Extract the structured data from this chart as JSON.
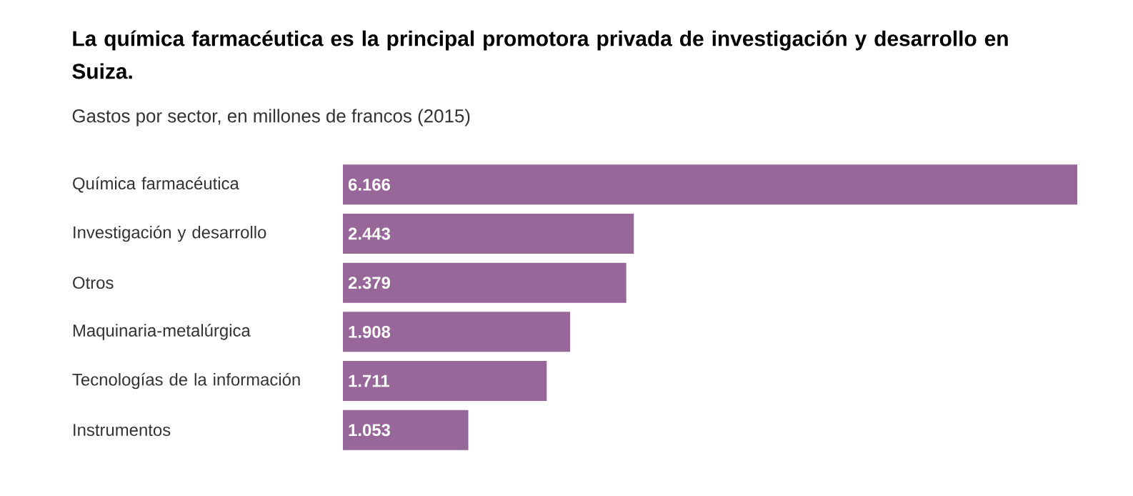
{
  "chart_data": {
    "type": "bar",
    "orientation": "horizontal",
    "title": "La química farmacéutica es la principal promotora privada de investigación y desarrollo en Suiza.",
    "subtitle": "Gastos por sector, en millones de francos (2015)",
    "categories": [
      "Química farmacéutica",
      "Investigación y desarrollo",
      "Otros",
      "Maquinaria-metalúrgica",
      "Tecnologías de la información",
      "Instrumentos"
    ],
    "values": [
      6166,
      2443,
      2379,
      1908,
      1711,
      1053
    ],
    "value_labels": [
      "6.166",
      "2.443",
      "2.379",
      "1.908",
      "1.711",
      "1.053"
    ],
    "color": "#98679a"
  }
}
